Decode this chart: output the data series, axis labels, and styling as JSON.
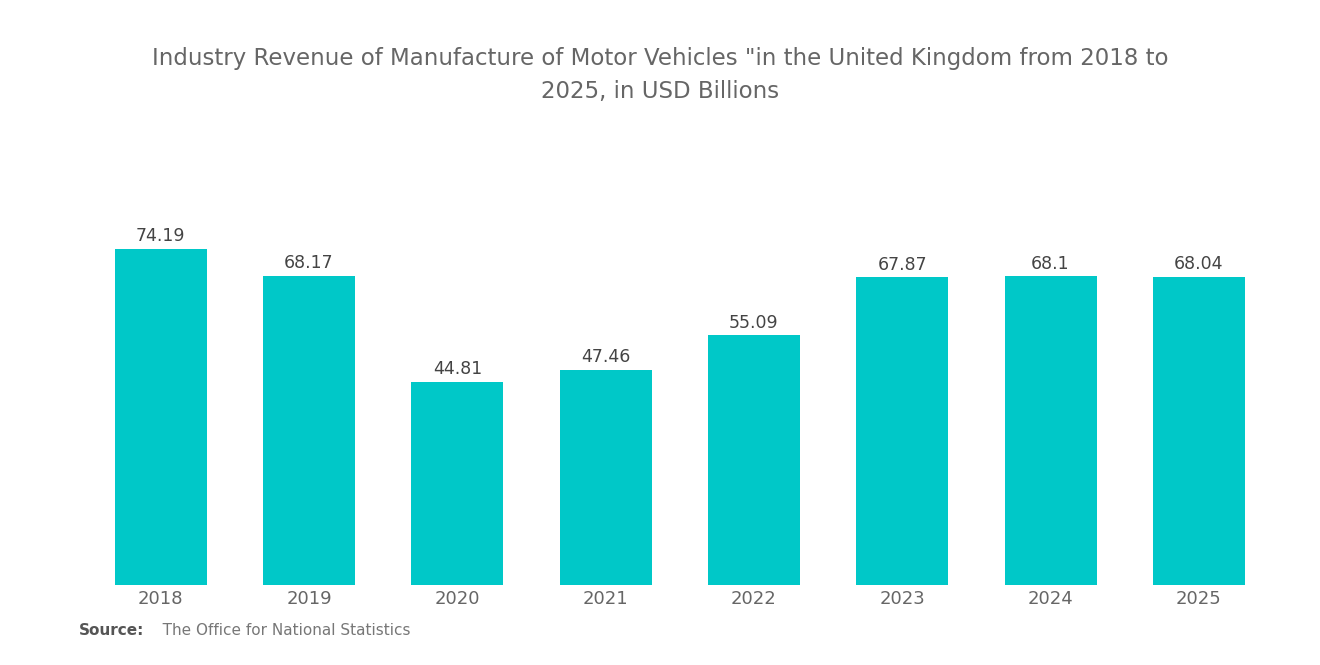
{
  "title_line1": "Industry Revenue of Manufacture of Motor Vehicles \"in the United Kingdom from 2018 to",
  "title_line2": "2025, in USD Billions",
  "years": [
    "2018",
    "2019",
    "2020",
    "2021",
    "2022",
    "2023",
    "2024",
    "2025"
  ],
  "values": [
    74.19,
    68.17,
    44.81,
    47.46,
    55.09,
    67.87,
    68.1,
    68.04
  ],
  "bar_color": "#00C8C8",
  "background_color": "#FFFFFF",
  "title_color": "#666666",
  "label_color": "#444444",
  "tick_color": "#666666",
  "source_label_bold": "Source:",
  "source_label_rest": "   The Office for National Statistics",
  "ylim": [
    0,
    88
  ],
  "bar_width": 0.62,
  "title_fontsize": 16.5,
  "label_fontsize": 12.5,
  "tick_fontsize": 13,
  "source_fontsize": 11
}
